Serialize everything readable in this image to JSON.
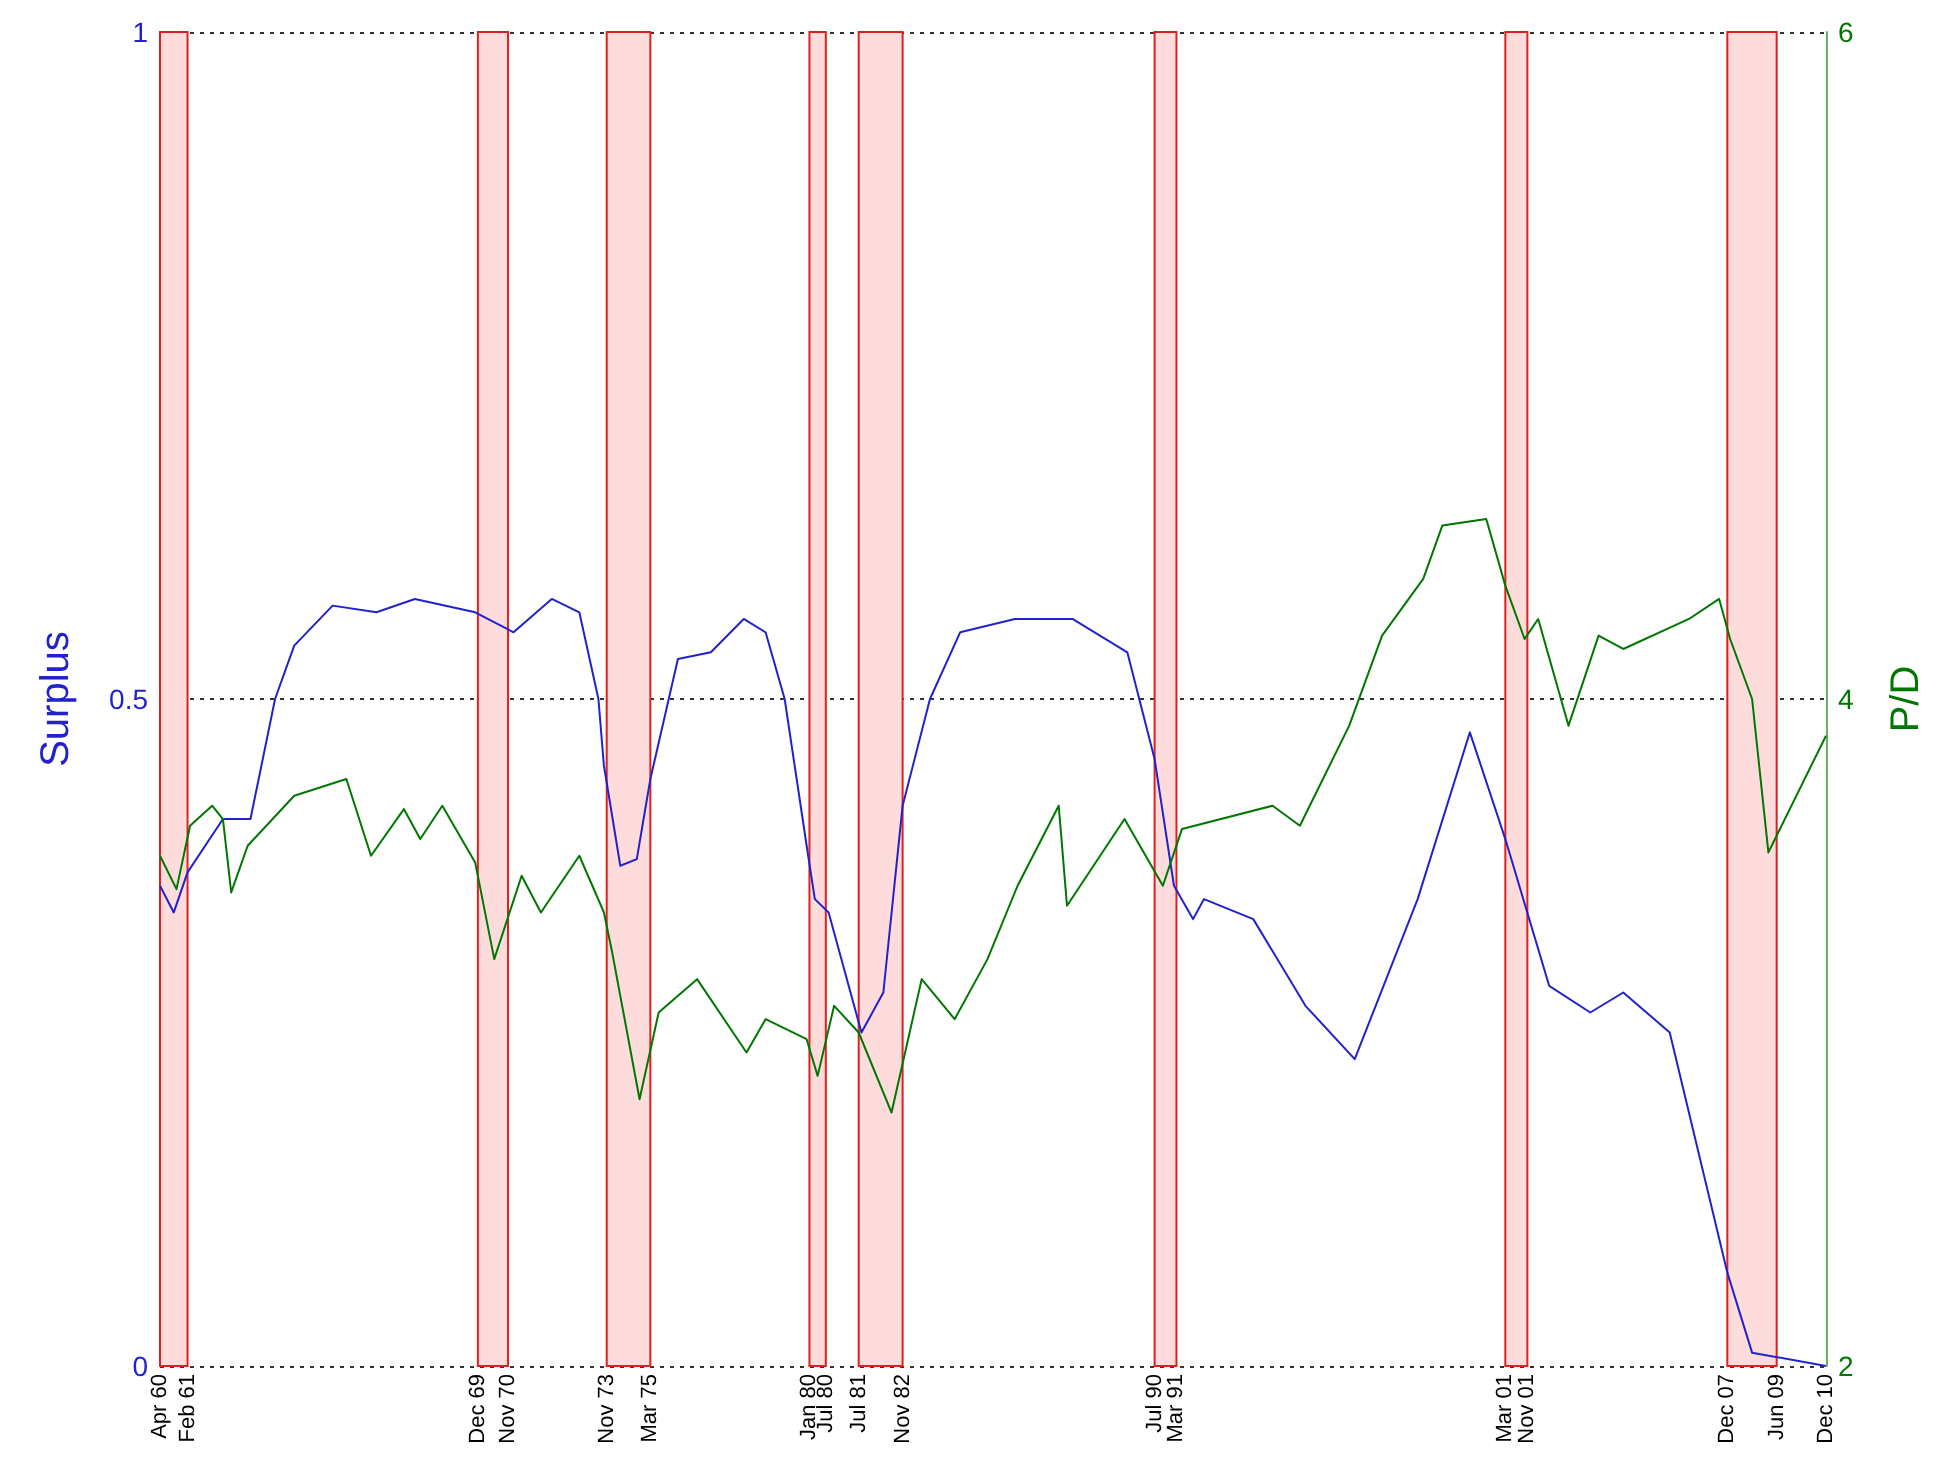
{
  "chart_data": {
    "type": "line",
    "ylabel": "Surplus",
    "y2label": "P/D",
    "xlim": [
      "1960-04",
      "2010-12"
    ],
    "xticks": [
      {
        "value": "1960-04",
        "label": "Apr 60"
      },
      {
        "value": "1961-02",
        "label": "Feb 61"
      },
      {
        "value": "1969-12",
        "label": "Dec 69"
      },
      {
        "value": "1970-11",
        "label": "Nov 70"
      },
      {
        "value": "1973-11",
        "label": "Nov 73"
      },
      {
        "value": "1975-03",
        "label": "Mar 75"
      },
      {
        "value": "1980-01",
        "label": "Jan 80"
      },
      {
        "value": "1980-07",
        "label": "Jul 80"
      },
      {
        "value": "1981-07",
        "label": "Jul 81"
      },
      {
        "value": "1982-11",
        "label": "Nov 82"
      },
      {
        "value": "1990-07",
        "label": "Jul 90"
      },
      {
        "value": "1991-03",
        "label": "Mar 91"
      },
      {
        "value": "2001-03",
        "label": "Mar 01"
      },
      {
        "value": "2001-11",
        "label": "Nov 01"
      },
      {
        "value": "2007-12",
        "label": "Dec 07"
      },
      {
        "value": "2009-06",
        "label": "Jun 09"
      },
      {
        "value": "2010-12",
        "label": "Dec 10"
      }
    ],
    "ylim": [
      0,
      1
    ],
    "yticks": [
      0,
      0.5,
      1
    ],
    "y2lim": [
      2,
      6
    ],
    "y2ticks": [
      2,
      4,
      6
    ],
    "grid": "y",
    "marker": "none",
    "line_style": "solid",
    "series": [
      {
        "color": "#2222cc",
        "x": [
          "1960-04",
          "1960-09",
          "1961-02",
          "1962-03",
          "1963-01",
          "1963-10",
          "1964-05",
          "1965-07",
          "1966-11",
          "1968-01",
          "1969-11",
          "1971-01",
          "1972-03",
          "1973-01",
          "1973-08",
          "1973-10",
          "1974-04",
          "1974-10",
          "1975-03",
          "1976-01",
          "1977-01",
          "1978-01",
          "1978-09",
          "1979-04",
          "1979-12",
          "1980-03",
          "1980-08",
          "1981-08",
          "1982-04",
          "1982-11",
          "1983-09",
          "1984-08",
          "1986-04",
          "1988-01",
          "1989-09",
          "1990-07",
          "1991-02",
          "1991-09",
          "1992-01",
          "1993-07",
          "1995-02",
          "1996-08",
          "1998-07",
          "2000-02",
          "2001-03",
          "2002-07",
          "2003-10",
          "2004-10",
          "2006-03",
          "2007-12",
          "2008-09",
          "2010-12"
        ],
        "values": [
          0.36,
          0.34,
          0.37,
          0.41,
          0.41,
          0.5,
          0.54,
          0.57,
          0.565,
          0.575,
          0.565,
          0.55,
          0.575,
          0.565,
          0.5,
          0.45,
          0.375,
          0.38,
          0.44,
          0.53,
          0.535,
          0.56,
          0.55,
          0.5,
          0.39,
          0.35,
          0.34,
          0.25,
          0.28,
          0.42,
          0.5,
          0.55,
          0.56,
          0.56,
          0.535,
          0.455,
          0.36,
          0.335,
          0.35,
          0.335,
          0.27,
          0.23,
          0.35,
          0.475,
          0.395,
          0.285,
          0.265,
          0.28,
          0.25,
          0.07,
          0.01,
          0.0
        ]
      },
      {
        "color": "#007700",
        "axis": "y2",
        "x": [
          "1960-04",
          "1960-10",
          "1961-03",
          "1961-11",
          "1962-03",
          "1962-06",
          "1962-12",
          "1964-05",
          "1965-12",
          "1966-09",
          "1967-09",
          "1968-03",
          "1968-11",
          "1969-11",
          "1970-06",
          "1971-04",
          "1971-11",
          "1973-01",
          "1973-10",
          "1974-01",
          "1974-11",
          "1975-06",
          "1976-08",
          "1978-02",
          "1978-09",
          "1979-12",
          "1980-04",
          "1980-10",
          "1981-07",
          "1982-07",
          "1983-06",
          "1984-06",
          "1985-06",
          "1986-05",
          "1987-08",
          "1987-11",
          "1989-08",
          "1990-10",
          "1991-05",
          "1994-02",
          "1994-12",
          "1996-06",
          "1997-06",
          "1998-09",
          "1999-04",
          "2000-08",
          "2001-03",
          "2001-10",
          "2002-03",
          "2003-02",
          "2004-01",
          "2004-10",
          "2006-10",
          "2007-09",
          "2008-01",
          "2008-09",
          "2009-03",
          "2010-12"
        ],
        "values": [
          3.53,
          3.43,
          3.62,
          3.68,
          3.64,
          3.42,
          3.56,
          3.71,
          3.76,
          3.53,
          3.67,
          3.58,
          3.68,
          3.51,
          3.22,
          3.47,
          3.36,
          3.53,
          3.36,
          3.24,
          2.8,
          3.06,
          3.16,
          2.94,
          3.04,
          2.98,
          2.87,
          3.08,
          3.0,
          2.76,
          3.16,
          3.04,
          3.22,
          3.44,
          3.68,
          3.38,
          3.64,
          3.44,
          3.61,
          3.68,
          3.62,
          3.92,
          4.19,
          4.36,
          4.52,
          4.54,
          4.34,
          4.18,
          4.24,
          3.92,
          4.19,
          4.15,
          4.24,
          4.3,
          4.18,
          4.0,
          3.54,
          3.89
        ]
      }
    ],
    "bands": [
      {
        "axis": "x",
        "from": "1960-04",
        "to": "1961-02",
        "color": "#ffdcdc"
      },
      {
        "axis": "x",
        "from": "1969-12",
        "to": "1970-11",
        "color": "#ffdcdc"
      },
      {
        "axis": "x",
        "from": "1973-11",
        "to": "1975-03",
        "color": "#ffdcdc"
      },
      {
        "axis": "x",
        "from": "1980-01",
        "to": "1980-07",
        "color": "#ffdcdc"
      },
      {
        "axis": "x",
        "from": "1981-07",
        "to": "1982-11",
        "color": "#ffdcdc"
      },
      {
        "axis": "x",
        "from": "1990-07",
        "to": "1991-03",
        "color": "#ffdcdc"
      },
      {
        "axis": "x",
        "from": "2001-03",
        "to": "2001-11",
        "color": "#ffdcdc"
      },
      {
        "axis": "x",
        "from": "2007-12",
        "to": "2009-06",
        "color": "#ffdcdc"
      }
    ]
  }
}
